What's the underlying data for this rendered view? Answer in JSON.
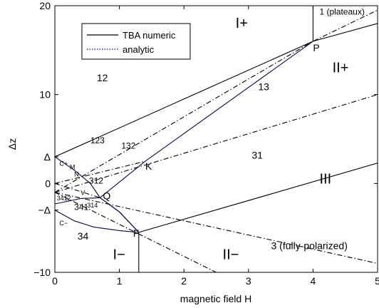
{
  "chart_data": {
    "type": "line",
    "xlabel": "magnetic field H",
    "ylabel": "Δz",
    "xlim": [
      0,
      5
    ],
    "ylim": [
      -10,
      20
    ],
    "x_ticks": [
      {
        "v": 0,
        "label": "0"
      },
      {
        "v": 1,
        "label": "1"
      },
      {
        "v": 2,
        "label": "2"
      },
      {
        "v": 3,
        "label": "3"
      },
      {
        "v": 4,
        "label": "4"
      },
      {
        "v": 5,
        "label": "5"
      }
    ],
    "y_ticks": [
      {
        "v": -10,
        "label": "−10"
      },
      {
        "v": 0,
        "label": "0"
      },
      {
        "v": 10,
        "label": "10"
      },
      {
        "v": 20,
        "label": "20"
      }
    ],
    "y_special_ticks": [
      {
        "v": 3,
        "label": "Δ"
      },
      {
        "v": -3,
        "label": "−Δ"
      }
    ],
    "grid": false,
    "legend": {
      "placement": "top-left",
      "entries": [
        {
          "label": "TBA numeric",
          "style": "solid",
          "color": "#000000"
        },
        {
          "label": "analytic",
          "style": "dotted",
          "color": "#0000cc"
        }
      ]
    },
    "series": [
      {
        "style": "solid",
        "points": [
          [
            0,
            3
          ],
          [
            4,
            16
          ],
          [
            5,
            18
          ]
        ]
      },
      {
        "style": "solid",
        "points": [
          [
            1.3,
            -5.5
          ],
          [
            5,
            2.3
          ]
        ]
      },
      {
        "style": "solid",
        "points": [
          [
            1.3,
            -5.5
          ],
          [
            1.3,
            -10
          ]
        ]
      },
      {
        "style": "solid",
        "points": [
          [
            4,
            16
          ],
          [
            4,
            20
          ]
        ]
      },
      {
        "style": "solid",
        "points": [
          [
            0,
            -3
          ],
          [
            0.3,
            -4.2
          ],
          [
            0.6,
            -4.9
          ],
          [
            1.0,
            -5.3
          ],
          [
            1.3,
            -5.5
          ]
        ]
      },
      {
        "style": "solid",
        "points": [
          [
            0,
            -2.3
          ],
          [
            0.4,
            -1.7
          ],
          [
            0.7,
            -1.6
          ],
          [
            1.0,
            -3.2
          ],
          [
            1.3,
            -5.5
          ]
        ]
      },
      {
        "style": "solid",
        "points": [
          [
            0,
            3
          ],
          [
            0.3,
            1.5
          ],
          [
            0.55,
            0
          ],
          [
            0.7,
            -1.6
          ],
          [
            1.0,
            -3.2
          ],
          [
            1.3,
            -5.5
          ]
        ]
      },
      {
        "style": "solid",
        "points": [
          [
            0.7,
            -1.6
          ],
          [
            1.4,
            2.5
          ],
          [
            4,
            16
          ]
        ]
      },
      {
        "style": "dashdot",
        "points": [
          [
            0,
            -1
          ],
          [
            4,
            16
          ],
          [
            5,
            19.5
          ]
        ]
      },
      {
        "style": "dashdot",
        "points": [
          [
            0,
            -1
          ],
          [
            5,
            10
          ]
        ]
      },
      {
        "style": "dashdot",
        "points": [
          [
            0,
            -1
          ],
          [
            2.5,
            -10
          ]
        ]
      },
      {
        "style": "dashdot",
        "points": [
          [
            0,
            -1
          ],
          [
            5,
            -9
          ]
        ]
      },
      {
        "style": "dashdot",
        "points": [
          [
            0,
            0
          ],
          [
            1.4,
            2.5
          ]
        ]
      },
      {
        "style": "dashdot",
        "points": [
          [
            0,
            0
          ],
          [
            0.7,
            -1.6
          ]
        ]
      }
    ],
    "points": [
      {
        "name": "P",
        "x": 4,
        "y": 16
      },
      {
        "name": "K",
        "x": 1.4,
        "y": 2.5
      },
      {
        "name": "Q",
        "x": 0.7,
        "y": -1.6
      },
      {
        "name": "F",
        "x": 1.3,
        "y": -5.5
      }
    ],
    "annotations": [
      {
        "text": "I+",
        "x": 2.8,
        "y": 17.5,
        "size": "big"
      },
      {
        "text": "II+",
        "x": 4.3,
        "y": 12.5,
        "size": "big"
      },
      {
        "text": "III",
        "x": 4.1,
        "y": 0,
        "size": "big"
      },
      {
        "text": "I−",
        "x": 0.9,
        "y": -8.5,
        "size": "big"
      },
      {
        "text": "II−",
        "x": 2.6,
        "y": -8.5,
        "size": "big"
      },
      {
        "text": "1 (plateaux)",
        "x": 4.1,
        "y": 19,
        "size": "sm"
      },
      {
        "text": "12",
        "x": 0.65,
        "y": 11.5,
        "size": "med"
      },
      {
        "text": "13",
        "x": 3.15,
        "y": 10.5,
        "size": "med"
      },
      {
        "text": "31",
        "x": 3.05,
        "y": 2.8,
        "size": "med"
      },
      {
        "text": "34",
        "x": 0.35,
        "y": -6.3,
        "size": "med"
      },
      {
        "text": "3 (fully-polarized)",
        "x": 3.35,
        "y": -7.4,
        "size": "med"
      },
      {
        "text": "123",
        "x": 0.55,
        "y": 4.5,
        "size": "sm"
      },
      {
        "text": "132",
        "x": 1.03,
        "y": 3.9,
        "size": "sm"
      },
      {
        "text": "312",
        "x": 0.53,
        "y": 0,
        "size": "sm"
      },
      {
        "text": "341",
        "x": 0.3,
        "y": -3,
        "size": "sm"
      },
      {
        "text": "3412",
        "x": 0.03,
        "y": -1.9,
        "size": "xs"
      },
      {
        "text": "314",
        "x": 0.5,
        "y": -2.7,
        "size": "xs"
      },
      {
        "text": "M",
        "x": 0.23,
        "y": 1.6,
        "size": "xs"
      },
      {
        "text": "N",
        "x": 0.3,
        "y": 0.8,
        "size": "xs"
      },
      {
        "text": "V",
        "x": 0.4,
        "y": -1.3,
        "size": "xs"
      },
      {
        "text": "C+",
        "x": 0.07,
        "y": 2.0,
        "size": "xs"
      },
      {
        "text": "C−",
        "x": 0.07,
        "y": -4.7,
        "size": "xs"
      }
    ]
  }
}
